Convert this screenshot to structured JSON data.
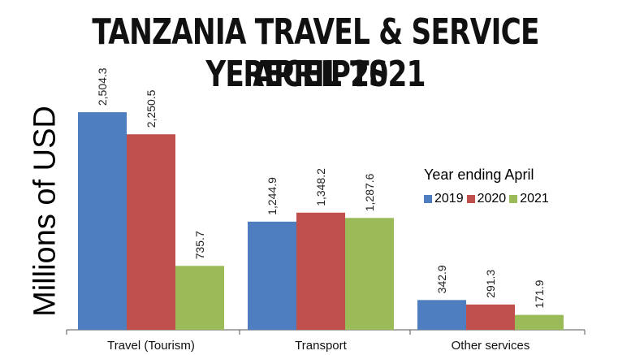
{
  "title": {
    "line1": "TANZANIA TRAVEL & SERVICE RECEIPTS",
    "line2": "YE APRIL 2021"
  },
  "legend": {
    "title": "Year ending  April"
  },
  "colors": {
    "2019": "#4f7ec0",
    "2020": "#c0504d",
    "2021": "#9bbb59"
  },
  "chart_data": {
    "type": "bar",
    "title": "TANZANIA TRAVEL & SERVICE RECEIPTS YE APRIL 2021",
    "xlabel": "",
    "ylabel": "Millions of USD",
    "ylim": [
      0,
      2800
    ],
    "grid": false,
    "legend_placement": "right",
    "categories": [
      "Travel (Tourism)",
      "Transport",
      "Other services"
    ],
    "series": [
      {
        "name": "2019",
        "values": [
          2504.3,
          1244.9,
          342.9
        ],
        "labels": [
          "2,504.3",
          "1,244.9",
          "342.9"
        ]
      },
      {
        "name": "2020",
        "values": [
          2250.5,
          1348.2,
          291.3
        ],
        "labels": [
          "2,250.5",
          "1,348.2",
          "291.3"
        ]
      },
      {
        "name": "2021",
        "values": [
          735.7,
          1287.6,
          171.9
        ],
        "labels": [
          "735.7",
          "1,287.6",
          "171.9"
        ]
      }
    ]
  }
}
